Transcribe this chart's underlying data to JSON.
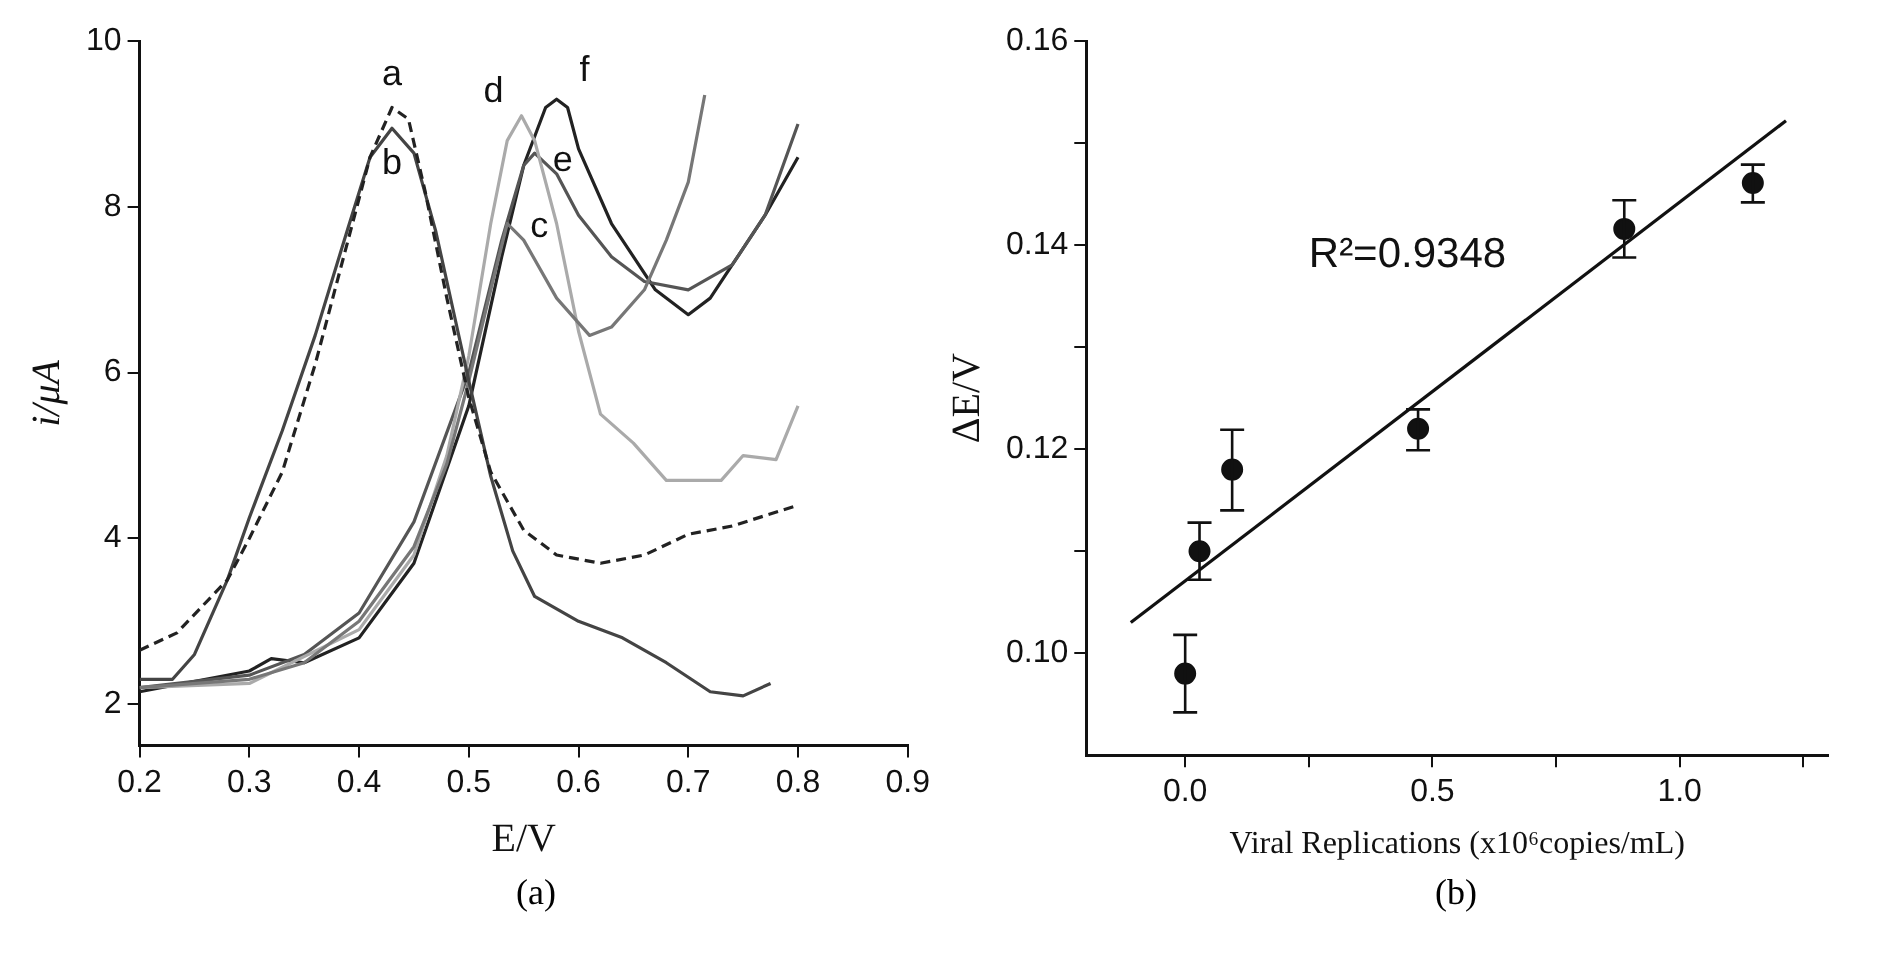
{
  "chart_data": [
    {
      "type": "line",
      "xlabel": "E/V",
      "ylabel": "i/μA",
      "xlim": [
        0.2,
        0.9
      ],
      "xticks": [
        0.2,
        0.3,
        0.4,
        0.5,
        0.6,
        0.7,
        0.8,
        0.9
      ],
      "ylim": [
        1.5,
        10
      ],
      "yticks": [
        2,
        4,
        6,
        8,
        10
      ],
      "grid": false,
      "legend": false,
      "marker": "none",
      "annotations": [
        "(a)"
      ],
      "series": [
        {
          "name": "a",
          "color": "#222222",
          "line_style": "dashed",
          "x": [
            0.2,
            0.234,
            0.28,
            0.3,
            0.33,
            0.36,
            0.39,
            0.41,
            0.43,
            0.445,
            0.46,
            0.48,
            0.5,
            0.52,
            0.55,
            0.58,
            0.62,
            0.66,
            0.7,
            0.74,
            0.8
          ],
          "values": [
            2.65,
            2.86,
            3.5,
            4.0,
            4.8,
            6.1,
            7.6,
            8.6,
            9.2,
            9.06,
            8.2,
            6.9,
            5.7,
            4.8,
            4.1,
            3.8,
            3.7,
            3.8,
            4.05,
            4.15,
            4.4
          ]
        },
        {
          "name": "b",
          "color": "#444444",
          "x": [
            0.2,
            0.23,
            0.25,
            0.28,
            0.3,
            0.33,
            0.36,
            0.39,
            0.41,
            0.43,
            0.45,
            0.47,
            0.49,
            0.5,
            0.52,
            0.54,
            0.56,
            0.6,
            0.64,
            0.68,
            0.72,
            0.75,
            0.775
          ],
          "values": [
            2.3,
            2.3,
            2.6,
            3.5,
            4.25,
            5.3,
            6.45,
            7.75,
            8.6,
            8.95,
            8.65,
            7.7,
            6.5,
            5.9,
            4.75,
            3.85,
            3.3,
            3.0,
            2.8,
            2.5,
            2.15,
            2.1,
            2.25
          ]
        },
        {
          "name": "c",
          "color": "#777777",
          "x": [
            0.2,
            0.3,
            0.35,
            0.4,
            0.45,
            0.48,
            0.5,
            0.52,
            0.535,
            0.55,
            0.58,
            0.61,
            0.63,
            0.66,
            0.68,
            0.7,
            0.715
          ],
          "values": [
            2.2,
            2.3,
            2.5,
            3.0,
            3.9,
            4.9,
            5.9,
            7.0,
            7.8,
            7.6,
            6.9,
            6.45,
            6.55,
            7.0,
            7.6,
            8.3,
            9.35
          ]
        },
        {
          "name": "d",
          "color": "#aaaaaa",
          "x": [
            0.2,
            0.3,
            0.4,
            0.45,
            0.48,
            0.5,
            0.52,
            0.535,
            0.548,
            0.56,
            0.58,
            0.6,
            0.62,
            0.65,
            0.68,
            0.7,
            0.73,
            0.75,
            0.78,
            0.8
          ],
          "values": [
            2.2,
            2.25,
            2.9,
            3.8,
            5.0,
            6.2,
            7.8,
            8.8,
            9.1,
            8.8,
            7.8,
            6.5,
            5.5,
            5.15,
            4.7,
            4.7,
            4.7,
            5.0,
            4.95,
            5.6
          ]
        },
        {
          "name": "e",
          "color": "#555555",
          "x": [
            0.2,
            0.3,
            0.35,
            0.4,
            0.45,
            0.5,
            0.53,
            0.55,
            0.56,
            0.58,
            0.6,
            0.63,
            0.66,
            0.7,
            0.74,
            0.77,
            0.8
          ],
          "values": [
            2.2,
            2.35,
            2.6,
            3.1,
            4.2,
            6.0,
            7.6,
            8.5,
            8.65,
            8.4,
            7.9,
            7.4,
            7.1,
            7.0,
            7.3,
            7.9,
            9.0
          ]
        },
        {
          "name": "f",
          "color": "#222222",
          "x": [
            0.2,
            0.3,
            0.32,
            0.35,
            0.4,
            0.45,
            0.5,
            0.53,
            0.55,
            0.57,
            0.58,
            0.59,
            0.6,
            0.63,
            0.67,
            0.7,
            0.72,
            0.74,
            0.77,
            0.8
          ],
          "values": [
            2.15,
            2.4,
            2.55,
            2.5,
            2.8,
            3.7,
            5.6,
            7.4,
            8.5,
            9.2,
            9.3,
            9.2,
            8.7,
            7.8,
            7.0,
            6.7,
            6.9,
            7.3,
            7.9,
            8.6
          ]
        }
      ]
    },
    {
      "type": "scatter",
      "xlabel": "Viral Replications (x10⁶copies/mL)",
      "ylabel": "ΔE/V",
      "xlim": [
        -0.2,
        1.3
      ],
      "xticks": [
        {
          "value": 0,
          "label": "0.0"
        },
        {
          "value": 0.25,
          "label": null
        },
        {
          "value": 0.5,
          "label": "0.5"
        },
        {
          "value": 0.75,
          "label": null
        },
        {
          "value": 1,
          "label": "1.0"
        },
        {
          "value": 1.25,
          "label": null
        }
      ],
      "ylim": [
        0.09,
        0.16
      ],
      "yticks": [
        {
          "value": 0.1,
          "label": "0.10"
        },
        {
          "value": 0.11,
          "label": null
        },
        {
          "value": 0.12,
          "label": "0.12"
        },
        {
          "value": 0.13,
          "label": null
        },
        {
          "value": 0.14,
          "label": "0.14"
        },
        {
          "value": 0.15,
          "label": null
        },
        {
          "value": 0.16,
          "label": "0.16"
        }
      ],
      "grid": false,
      "legend": false,
      "marker": "circle",
      "annotations": [
        "R²=0.9348",
        "(b)"
      ],
      "series": [
        {
          "color": "#111111",
          "x": [
            0,
            0.029,
            0.095,
            0.471,
            0.888,
            1.148
          ],
          "values": [
            0.098,
            0.11,
            0.118,
            0.122,
            0.1416,
            0.1461
          ],
          "errors": [
            [
              0.0942,
              0.1018
            ],
            [
              0.1072,
              0.1128
            ],
            [
              0.114,
              0.1219
            ],
            [
              0.1199,
              0.1239
            ],
            [
              0.1388,
              0.1444
            ],
            [
              0.1442,
              0.1479
            ]
          ]
        },
        {
          "type": "line",
          "marker": "none",
          "color": "#111111",
          "x": [
            -0.11,
            1.215
          ],
          "values": [
            0.103,
            0.1522
          ]
        }
      ]
    }
  ]
}
